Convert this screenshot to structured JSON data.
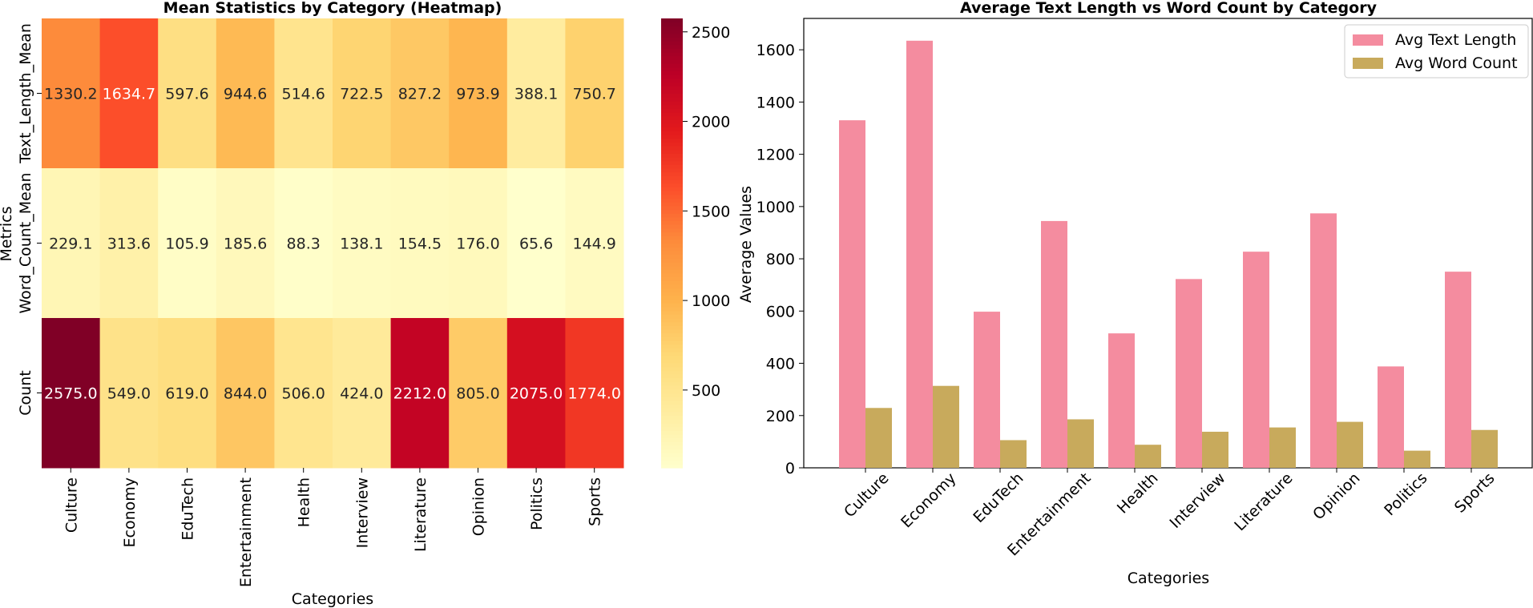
{
  "chart_data": [
    {
      "type": "heatmap",
      "title": "Mean Statistics by Category (Heatmap)",
      "xlabel": "Categories",
      "ylabel": "Metrics",
      "categories": [
        "Culture",
        "Economy",
        "EduTech",
        "Entertainment",
        "Health",
        "Interview",
        "Literature",
        "Opinion",
        "Politics",
        "Sports"
      ],
      "rows": [
        "Text_Length_Mean",
        "Word_Count_Mean",
        "Count"
      ],
      "values": [
        [
          1330.2,
          1634.7,
          597.6,
          944.6,
          514.6,
          722.5,
          827.2,
          973.9,
          388.1,
          750.7
        ],
        [
          229.1,
          313.6,
          105.9,
          185.6,
          88.3,
          138.1,
          154.5,
          176.0,
          65.6,
          144.9
        ],
        [
          2575.0,
          549.0,
          619.0,
          844.0,
          506.0,
          424.0,
          2212.0,
          805.0,
          2075.0,
          1774.0
        ]
      ],
      "colorbar": {
        "min": 65.6,
        "max": 2575.0,
        "ticks": [
          500,
          1000,
          1500,
          2000,
          2500
        ],
        "colormap": "YlOrRd"
      }
    },
    {
      "type": "bar",
      "title": "Average Text Length vs Word Count by Category",
      "xlabel": "Categories",
      "ylabel": "Average Values",
      "categories": [
        "Culture",
        "Economy",
        "EduTech",
        "Entertainment",
        "Health",
        "Interview",
        "Literature",
        "Opinion",
        "Politics",
        "Sports"
      ],
      "series": [
        {
          "name": "Avg Text Length",
          "color": "#f48c9f",
          "values": [
            1330.2,
            1634.7,
            597.6,
            944.6,
            514.6,
            722.5,
            827.2,
            973.9,
            388.1,
            750.7
          ]
        },
        {
          "name": "Avg Word Count",
          "color": "#c8aa5c",
          "values": [
            229.1,
            313.6,
            105.9,
            185.6,
            88.3,
            138.1,
            154.5,
            176.0,
            65.6,
            144.9
          ]
        }
      ],
      "ylim": [
        0,
        1720
      ],
      "yticks": [
        0,
        200,
        400,
        600,
        800,
        1000,
        1200,
        1400,
        1600
      ],
      "legend": "top-right"
    }
  ]
}
